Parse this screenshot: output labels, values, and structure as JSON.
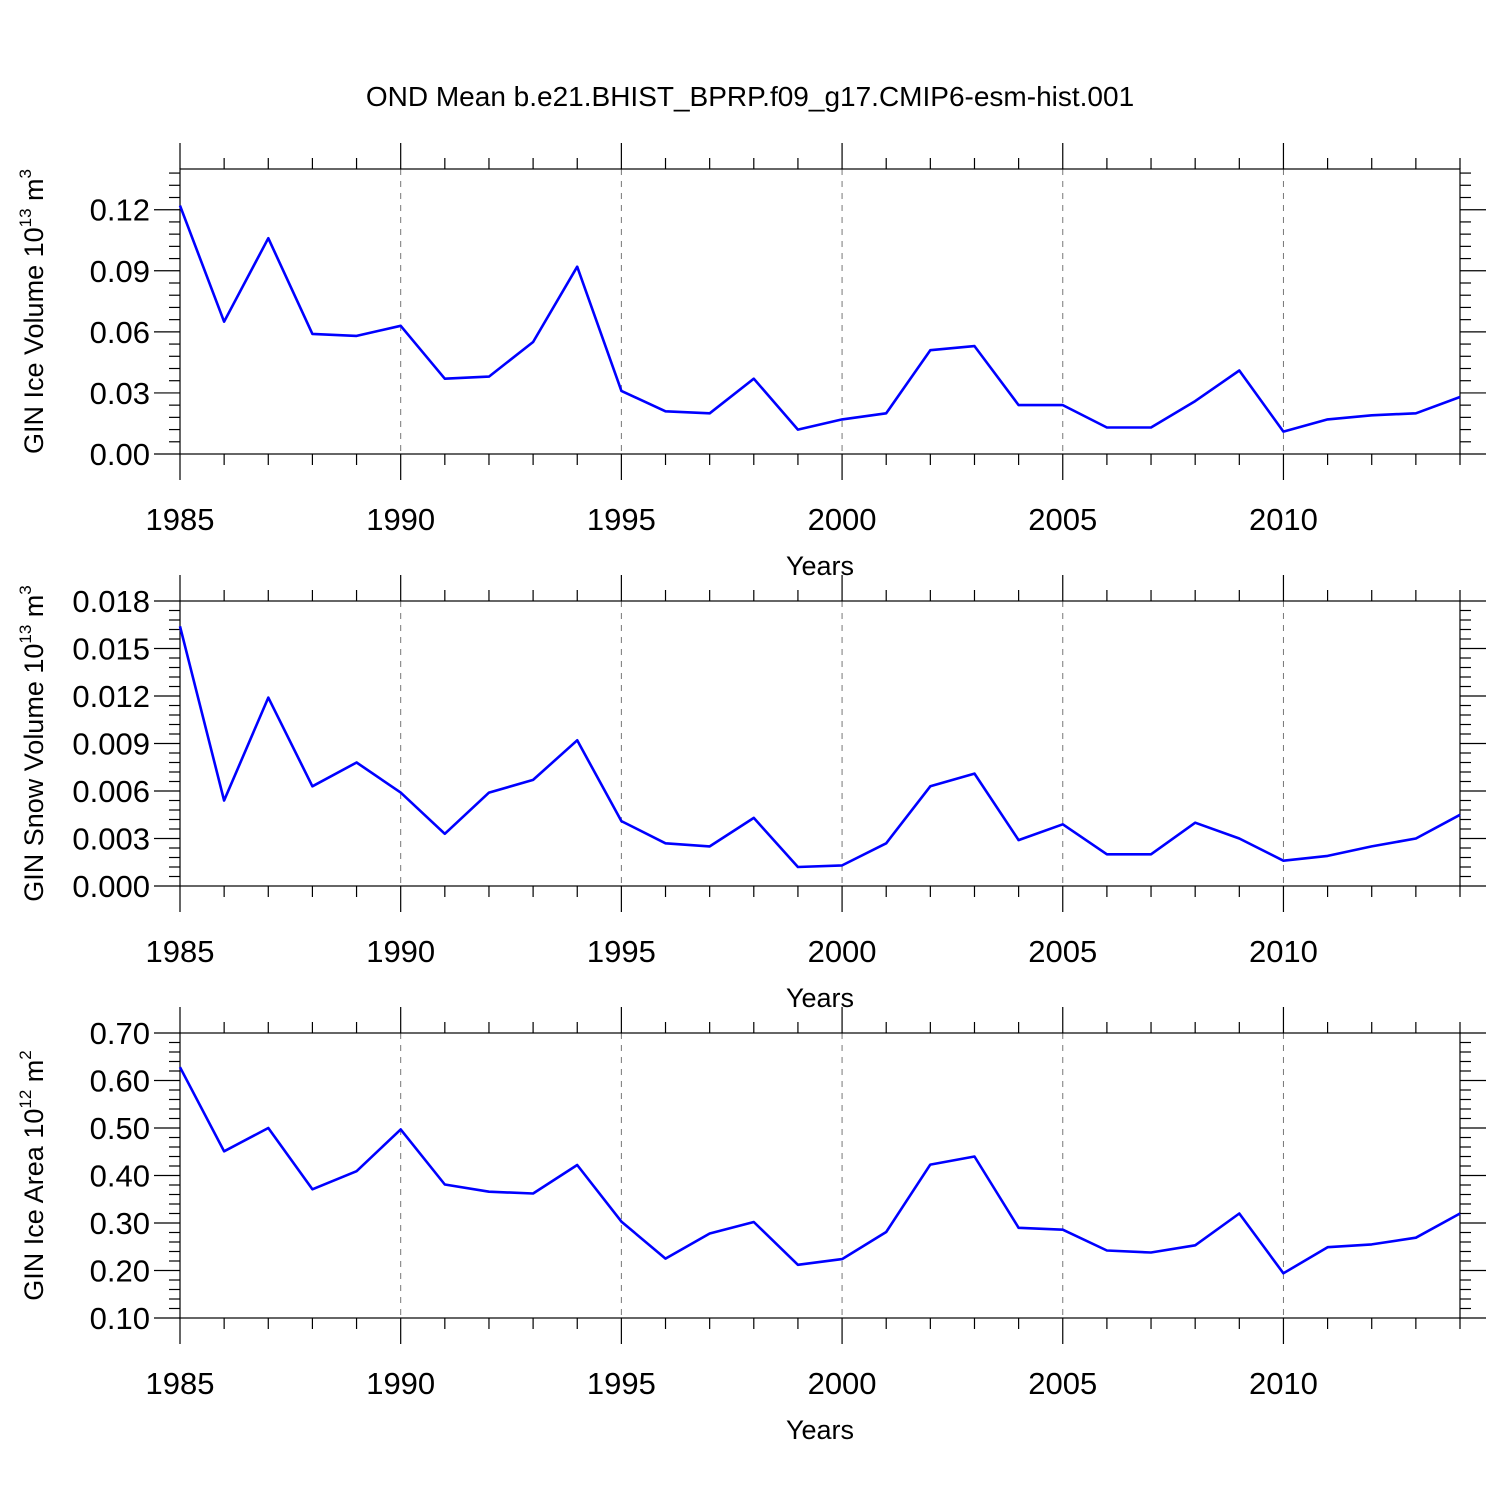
{
  "title": "OND Mean b.e21.BHIST_BPRP.f09_g17.CMIP6-esm-hist.001",
  "line_color": "#0000ff",
  "chart_data": [
    {
      "type": "line",
      "ylabel_main": "GIN Ice Volume 10",
      "ylabel_exp": "13",
      "ylabel_unit": " m",
      "ylabel_unit_exp": "3",
      "xlabel": "Years",
      "xlim": [
        1985,
        2014
      ],
      "ylim": [
        0,
        0.14
      ],
      "xticks": [
        1985,
        1990,
        1995,
        2000,
        2005,
        2010
      ],
      "xtick_labels": [
        "1985",
        "1990",
        "1995",
        "2000",
        "2005",
        "2010"
      ],
      "yticks": [
        0,
        0.03,
        0.06,
        0.09,
        0.12
      ],
      "ytick_labels": [
        "0.00",
        "0.03",
        "0.06",
        "0.09",
        "0.12"
      ],
      "x": [
        1985,
        1986,
        1987,
        1988,
        1989,
        1990,
        1991,
        1992,
        1993,
        1994,
        1995,
        1996,
        1997,
        1998,
        1999,
        2000,
        2001,
        2002,
        2003,
        2004,
        2005,
        2006,
        2007,
        2008,
        2009,
        2010,
        2011,
        2012,
        2013,
        2014
      ],
      "y": [
        0.122,
        0.065,
        0.106,
        0.059,
        0.058,
        0.063,
        0.037,
        0.038,
        0.055,
        0.092,
        0.031,
        0.021,
        0.02,
        0.037,
        0.012,
        0.017,
        0.02,
        0.051,
        0.053,
        0.024,
        0.024,
        0.013,
        0.013,
        0.026,
        0.041,
        0.011,
        0.017,
        0.019,
        0.02,
        0.028
      ]
    },
    {
      "type": "line",
      "ylabel_main": "GIN Snow Volume 10",
      "ylabel_exp": "13",
      "ylabel_unit": " m",
      "ylabel_unit_exp": "3",
      "xlabel": "Years",
      "xlim": [
        1985,
        2014
      ],
      "ylim": [
        0,
        0.018
      ],
      "xticks": [
        1985,
        1990,
        1995,
        2000,
        2005,
        2010
      ],
      "xtick_labels": [
        "1985",
        "1990",
        "1995",
        "2000",
        "2005",
        "2010"
      ],
      "yticks": [
        0,
        0.003,
        0.006,
        0.009,
        0.012,
        0.015,
        0.018
      ],
      "ytick_labels": [
        "0.000",
        "0.003",
        "0.006",
        "0.009",
        "0.012",
        "0.015",
        "0.018"
      ],
      "x": [
        1985,
        1986,
        1987,
        1988,
        1989,
        1990,
        1991,
        1992,
        1993,
        1994,
        1995,
        1996,
        1997,
        1998,
        1999,
        2000,
        2001,
        2002,
        2003,
        2004,
        2005,
        2006,
        2007,
        2008,
        2009,
        2010,
        2011,
        2012,
        2013,
        2014
      ],
      "y": [
        0.0164,
        0.0054,
        0.0119,
        0.0063,
        0.0078,
        0.0059,
        0.0033,
        0.0059,
        0.0067,
        0.0092,
        0.0041,
        0.0027,
        0.0025,
        0.0043,
        0.0012,
        0.0013,
        0.0027,
        0.0063,
        0.0071,
        0.0029,
        0.0039,
        0.002,
        0.002,
        0.004,
        0.003,
        0.0016,
        0.0019,
        0.0025,
        0.003,
        0.0045
      ]
    },
    {
      "type": "line",
      "ylabel_main": "GIN Ice Area 10",
      "ylabel_exp": "12",
      "ylabel_unit": " m",
      "ylabel_unit_exp": "2",
      "xlabel": "Years",
      "xlim": [
        1985,
        2014
      ],
      "ylim": [
        0.1,
        0.7
      ],
      "xticks": [
        1985,
        1990,
        1995,
        2000,
        2005,
        2010
      ],
      "xtick_labels": [
        "1985",
        "1990",
        "1995",
        "2000",
        "2005",
        "2010"
      ],
      "yticks": [
        0.1,
        0.2,
        0.3,
        0.4,
        0.5,
        0.6,
        0.7
      ],
      "ytick_labels": [
        "0.10",
        "0.20",
        "0.30",
        "0.40",
        "0.50",
        "0.60",
        "0.70"
      ],
      "x": [
        1985,
        1986,
        1987,
        1988,
        1989,
        1990,
        1991,
        1992,
        1993,
        1994,
        1995,
        1996,
        1997,
        1998,
        1999,
        2000,
        2001,
        2002,
        2003,
        2004,
        2005,
        2006,
        2007,
        2008,
        2009,
        2010,
        2011,
        2012,
        2013,
        2014
      ],
      "y": [
        0.628,
        0.451,
        0.5,
        0.371,
        0.409,
        0.497,
        0.381,
        0.366,
        0.362,
        0.422,
        0.303,
        0.225,
        0.278,
        0.302,
        0.212,
        0.224,
        0.281,
        0.423,
        0.44,
        0.29,
        0.286,
        0.242,
        0.238,
        0.253,
        0.32,
        0.194,
        0.249,
        0.255,
        0.269,
        0.32
      ]
    }
  ]
}
